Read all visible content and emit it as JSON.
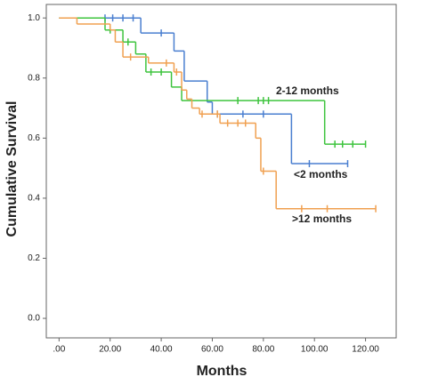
{
  "chart_data": {
    "type": "step",
    "x_label": "Months",
    "y_label": "Cumulative Survival",
    "xlim": [
      -5,
      132
    ],
    "ylim": [
      -0.065,
      1.045
    ],
    "xticks": [
      {
        "value": 0,
        "label": ".00"
      },
      {
        "value": 20,
        "label": "20.00"
      },
      {
        "value": 40,
        "label": "40.00"
      },
      {
        "value": 60,
        "label": "60.00"
      },
      {
        "value": 80,
        "label": "80.00"
      },
      {
        "value": 100,
        "label": "100.00"
      },
      {
        "value": 120,
        "label": "120.00"
      }
    ],
    "yticks": [
      {
        "value": 0,
        "label": "0.0"
      },
      {
        "value": 0.2,
        "label": "0.2"
      },
      {
        "value": 0.4,
        "label": "0.4"
      },
      {
        "value": 0.6,
        "label": "0.6"
      },
      {
        "value": 0.8,
        "label": "0.8"
      },
      {
        "value": 1,
        "label": "1.0"
      }
    ],
    "series": [
      {
        "name": "<2 months",
        "color": "#4a7fd0",
        "x": [
          0,
          32,
          45,
          49,
          58,
          60,
          91,
          113
        ],
        "values": [
          1,
          0.95,
          0.89,
          0.79,
          0.72,
          0.68,
          0.515,
          0.515
        ],
        "censor_x": [
          18,
          21,
          25,
          29,
          40,
          62,
          72,
          80,
          98,
          113
        ],
        "censor_values": [
          1,
          1,
          1,
          1,
          0.95,
          0.68,
          0.68,
          0.68,
          0.515,
          0.515
        ]
      },
      {
        "name": "2-12 months",
        "color": "#3ec43e",
        "x": [
          0,
          18,
          25,
          30,
          34,
          44,
          48,
          104,
          120
        ],
        "values": [
          1,
          0.96,
          0.92,
          0.88,
          0.82,
          0.77,
          0.725,
          0.58,
          0.58
        ],
        "censor_x": [
          20,
          27,
          36,
          40,
          70,
          78,
          80,
          82,
          108,
          111,
          115,
          120
        ],
        "censor_values": [
          0.96,
          0.92,
          0.82,
          0.82,
          0.725,
          0.725,
          0.725,
          0.725,
          0.58,
          0.58,
          0.58,
          0.58
        ]
      },
      {
        "name": ">12 months",
        "color": "#f0a050",
        "x": [
          0,
          7,
          20,
          22,
          25,
          35,
          45,
          48,
          50,
          52,
          55,
          63,
          77,
          79,
          85,
          124
        ],
        "values": [
          1,
          0.98,
          0.96,
          0.92,
          0.87,
          0.85,
          0.82,
          0.76,
          0.73,
          0.7,
          0.68,
          0.65,
          0.6,
          0.49,
          0.365,
          0.365
        ],
        "censor_x": [
          28,
          42,
          46,
          56,
          62,
          66,
          70,
          73,
          80,
          95,
          105,
          124
        ],
        "censor_values": [
          0.87,
          0.85,
          0.82,
          0.68,
          0.68,
          0.65,
          0.65,
          0.65,
          0.49,
          0.365,
          0.365,
          0.365
        ]
      }
    ]
  }
}
